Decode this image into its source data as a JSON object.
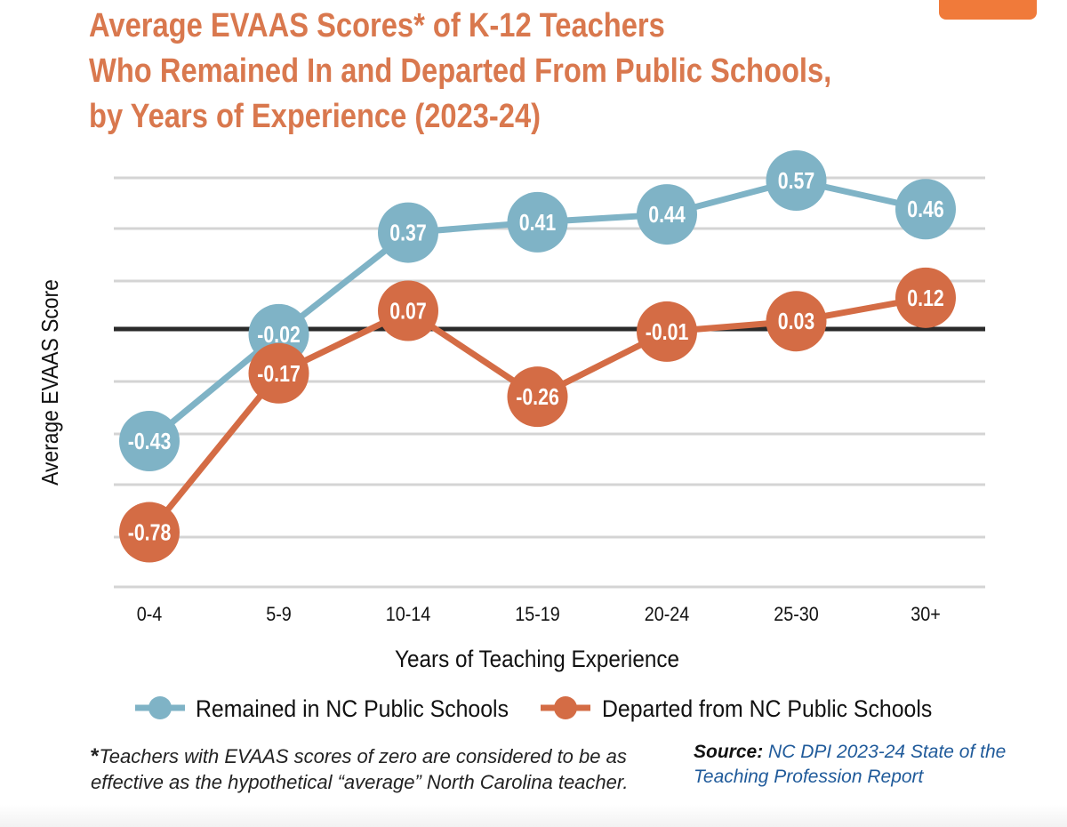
{
  "title_lines": [
    "Average EVAAS Scores* of K-12 Teachers",
    "Who Remained In and Departed From Public Schools,",
    "by Years of Experience (2023-24)"
  ],
  "colors": {
    "remained": "#7fb3c6",
    "departed": "#d46c45",
    "title": "#d9784e",
    "source_link": "#1f5a9a"
  },
  "chart_data": {
    "type": "line",
    "title": "Average EVAAS Scores* of K-12 Teachers Who Remained In and Departed From Public Schools, by Years of Experience (2023-24)",
    "xlabel": "Years of Teaching Experience",
    "ylabel": "Average EVAAS Score",
    "categories": [
      "0-4",
      "5-9",
      "10-14",
      "15-19",
      "20-24",
      "25-30",
      "30+"
    ],
    "ylim": [
      -1.0,
      0.6
    ],
    "y_gridlines": [
      -1.0,
      -0.8,
      -0.6,
      -0.4,
      -0.2,
      0.0,
      0.2,
      0.4,
      0.6
    ],
    "zero_line": true,
    "legend_position": "bottom",
    "series": [
      {
        "name": "Remained in NC Public Schools",
        "values": [
          -0.43,
          -0.02,
          0.37,
          0.41,
          0.44,
          0.57,
          0.46
        ],
        "labels": [
          "-0.43",
          "-0.02",
          "0.37",
          "0.41",
          "0.44",
          "0.57",
          "0.46"
        ]
      },
      {
        "name": "Departed from NC Public Schools",
        "values": [
          -0.78,
          -0.17,
          0.07,
          -0.26,
          -0.01,
          0.03,
          0.12
        ],
        "labels": [
          "-0.78",
          "-0.17",
          "0.07",
          "-0.26",
          "-0.01",
          "0.03",
          "0.12"
        ]
      }
    ]
  },
  "footnote": {
    "star": "*",
    "text": "Teachers with EVAAS scores of zero are considered to be as effective as the hypothetical “average” North Carolina teacher."
  },
  "source": {
    "label": "Source:",
    "text": "NC DPI 2023-24 State of the Teaching Profession Report"
  }
}
